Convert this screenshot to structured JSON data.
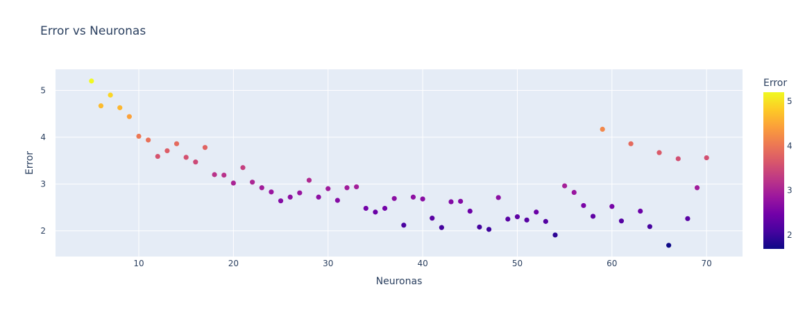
{
  "chart_data": {
    "type": "scatter",
    "title": "Error vs Neuronas",
    "xlabel": "Neuronas",
    "ylabel": "Error",
    "xlim": [
      1.2,
      73.8
    ],
    "ylim": [
      1.45,
      5.45
    ],
    "xticks": [
      10,
      20,
      30,
      40,
      50,
      60,
      70
    ],
    "yticks": [
      2,
      3,
      4,
      5
    ],
    "grid": true,
    "colorbar": {
      "title": "Error",
      "range": [
        1.69,
        5.2
      ],
      "ticks": [
        2,
        3,
        4,
        5
      ],
      "colorscale": [
        "#0d0887",
        "#46039f",
        "#7201a8",
        "#9c179e",
        "#bd3786",
        "#d8576b",
        "#ed7953",
        "#fb9f3a",
        "#fdca26",
        "#f0f921"
      ]
    },
    "x": [
      5,
      6,
      7,
      8,
      9,
      10,
      11,
      12,
      13,
      14,
      15,
      16,
      17,
      18,
      19,
      20,
      21,
      22,
      23,
      24,
      25,
      26,
      27,
      28,
      29,
      30,
      31,
      32,
      33,
      34,
      35,
      36,
      37,
      38,
      39,
      40,
      41,
      42,
      43,
      44,
      45,
      46,
      47,
      48,
      49,
      50,
      51,
      52,
      53,
      54,
      55,
      56,
      57,
      58,
      59,
      60,
      61,
      62,
      63,
      64,
      65,
      66,
      67,
      68,
      69,
      70
    ],
    "y": [
      5.2,
      4.67,
      4.9,
      4.63,
      4.44,
      4.02,
      3.94,
      3.59,
      3.71,
      3.86,
      3.57,
      3.47,
      3.78,
      3.2,
      3.19,
      3.02,
      3.35,
      3.04,
      2.92,
      2.83,
      2.64,
      2.72,
      2.81,
      3.08,
      2.72,
      2.9,
      2.65,
      2.92,
      2.94,
      2.48,
      2.4,
      2.48,
      2.69,
      2.12,
      2.72,
      2.68,
      2.27,
      2.07,
      2.62,
      2.63,
      2.42,
      2.08,
      2.03,
      2.71,
      2.25,
      2.3,
      2.23,
      2.4,
      2.2,
      1.91,
      2.96,
      2.82,
      2.54,
      2.31,
      4.17,
      2.52,
      2.21,
      3.86,
      2.42,
      2.09,
      3.67,
      1.69,
      3.54,
      2.26,
      2.92,
      3.56
    ]
  }
}
